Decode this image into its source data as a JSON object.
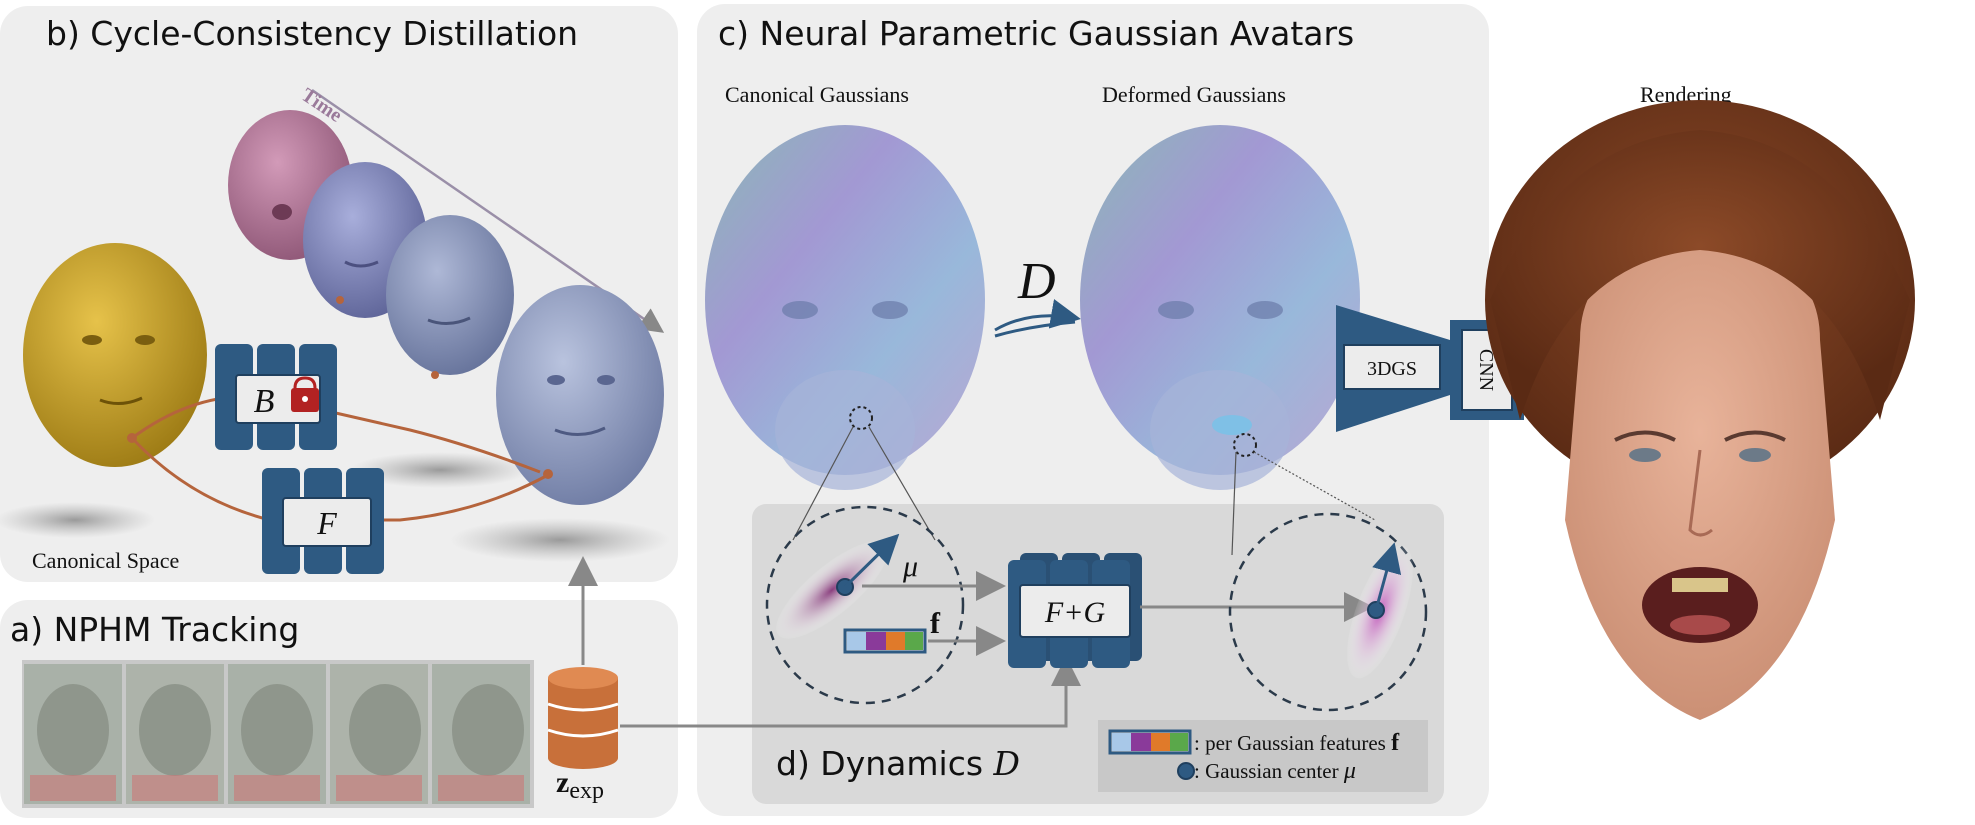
{
  "panel_b": {
    "title": "b) Cycle-Consistency Distillation",
    "time_label": "Time",
    "canonical_label": "Canonical Space",
    "network_b_symbol": "B",
    "network_f_symbol": "F"
  },
  "panel_a": {
    "title": "a) NPHM Tracking",
    "latent_bold": "z",
    "latent_sub": "exp",
    "frame_count": 5
  },
  "panel_c": {
    "title": "c) Neural Parametric Gaussian Avatars",
    "canonical_gaussians": "Canonical Gaussians",
    "deformed_gaussians": "Deformed Gaussians",
    "deform_symbol": "D",
    "renderer_label": "3DGS",
    "cnn_label": "CNN"
  },
  "panel_d": {
    "title": "d) Dynamics",
    "title_symbol": "D",
    "mu_label": "μ",
    "f_label": "f",
    "network_label": "F+G",
    "legend_features": ": per Gaussian features",
    "legend_features_symbol": "f",
    "legend_center": ": Gaussian center",
    "legend_center_symbol": "μ"
  },
  "rendering": {
    "label": "Rendering"
  },
  "colors": {
    "panel_bg": "#eeeeee",
    "inner_panel_bg": "#d9d9d9",
    "network_blue": "#2e5a82",
    "yellow_head": "#c9a22a",
    "pink_head": "#b07a9a",
    "lavender_head": "#7f86b8",
    "slate_head": "#8e9bbd",
    "latent_orange": "#c8703a",
    "cycle_line": "#b5643c",
    "gaussian_pink": "#c46bbf",
    "feature_colors": [
      "#a8c8e8",
      "#8a3a9a",
      "#e07a2a",
      "#5aa84a"
    ]
  }
}
